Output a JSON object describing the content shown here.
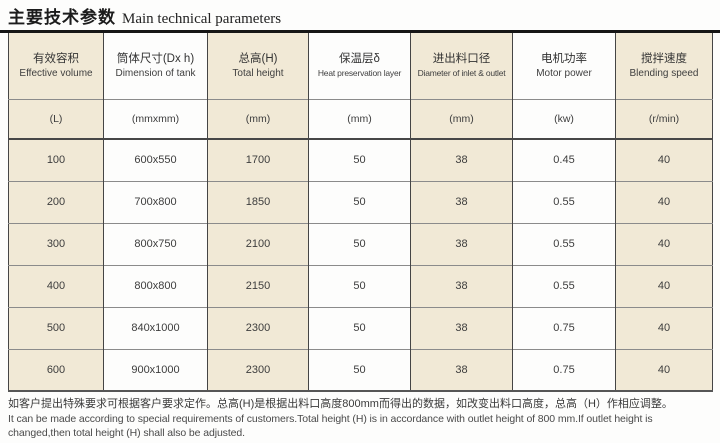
{
  "title": {
    "zh": "主要技术参数",
    "en": "Main technical parameters"
  },
  "table": {
    "columns": [
      {
        "zh": "有效容积",
        "en": "Effective volume",
        "unit": "(L)"
      },
      {
        "zh": "筒体尺寸(Dx h)",
        "en": "Dimension of tank",
        "unit": "(mmxmm)"
      },
      {
        "zh": "总高(H)",
        "en": "Total height",
        "unit": "(mm)"
      },
      {
        "zh": "保温层δ",
        "en": "Heat preservation layer",
        "unit": "(mm)"
      },
      {
        "zh": "进出料口径",
        "en": "Diameter of inlet & outlet",
        "unit": "(mm)"
      },
      {
        "zh": "电机功率",
        "en": "Motor power",
        "unit": "(kw)"
      },
      {
        "zh": "搅拌速度",
        "en": "Blending speed",
        "unit": "(r/min)"
      }
    ],
    "rows": [
      [
        "100",
        "600x550",
        "1700",
        "50",
        "38",
        "0.45",
        "40"
      ],
      [
        "200",
        "700x800",
        "1850",
        "50",
        "38",
        "0.55",
        "40"
      ],
      [
        "300",
        "800x750",
        "2100",
        "50",
        "38",
        "0.55",
        "40"
      ],
      [
        "400",
        "800x800",
        "2150",
        "50",
        "38",
        "0.55",
        "40"
      ],
      [
        "500",
        "840x1000",
        "2300",
        "50",
        "38",
        "0.75",
        "40"
      ],
      [
        "600",
        "900x1000",
        "2300",
        "50",
        "38",
        "0.75",
        "40"
      ]
    ]
  },
  "footnote": {
    "zh": "如客户提出特殊要求可根据客户要求定作。总高(H)是根据出料口高度800mm而得出的数据，如改变出料口高度，总高（H）作相应调整。",
    "en": "It can be made according to special requirements of customers.Total height (H) is in accordance with outlet height of 800 mm.If outlet height is changed,then total height (H) shall also be adjusted."
  },
  "colors": {
    "cell_beige": "#f1e9d6",
    "border_dark": "#454545",
    "row_line": "#8b8b8b",
    "text": "#3b3b3b",
    "title_line": "#161616"
  }
}
